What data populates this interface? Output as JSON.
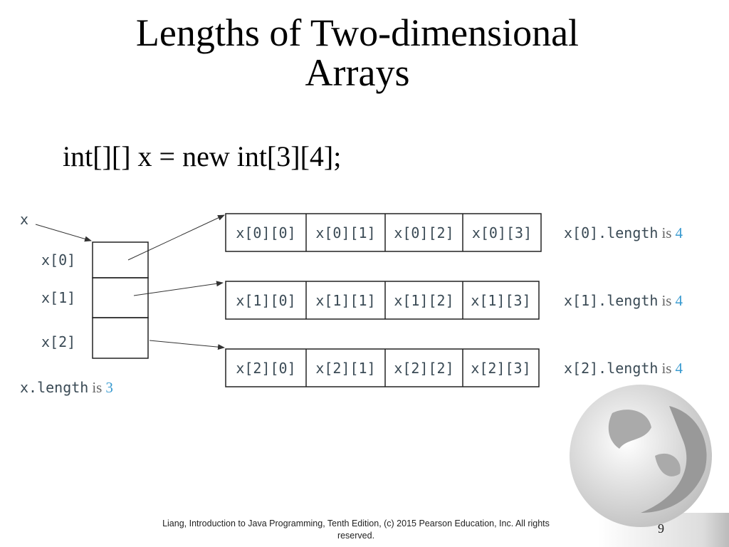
{
  "title": "Lengths of Two-dimensional Arrays",
  "code": "int[][] x = new int[3][4];",
  "diagram": {
    "variable": "x",
    "row_refs": [
      "x[0]",
      "x[1]",
      "x[2]"
    ],
    "rows": [
      [
        "x[0][0]",
        "x[0][1]",
        "x[0][2]",
        "x[0][3]"
      ],
      [
        "x[1][0]",
        "x[1][1]",
        "x[1][2]",
        "x[1][3]"
      ],
      [
        "x[2][0]",
        "x[2][1]",
        "x[2][2]",
        "x[2][3]"
      ]
    ],
    "row_lengths": [
      {
        "expr": "x[0].length",
        "is": "is",
        "value": 4
      },
      {
        "expr": "x[1].length",
        "is": "is",
        "value": 4
      },
      {
        "expr": "x[2].length",
        "is": "is",
        "value": 4
      }
    ],
    "outer_length": {
      "expr": "x.length",
      "is": "is",
      "value": 3
    }
  },
  "footer": "Liang, Introduction to Java Programming, Tenth Edition, (c) 2015 Pearson Education, Inc. All rights reserved.",
  "page_number": 9
}
